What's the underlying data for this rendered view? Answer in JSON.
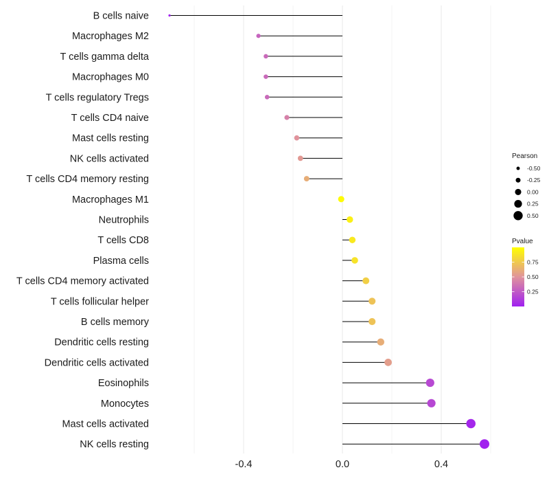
{
  "chart_data": {
    "type": "lollipop",
    "title": "",
    "xlabel": "",
    "ylabel": "",
    "xlim": [
      -0.7,
      0.62
    ],
    "x_ticks": [
      -0.4,
      0.0,
      0.4
    ],
    "x_tick_labels": [
      "-0.4",
      "0.0",
      "0.4"
    ],
    "grid": true,
    "categories": [
      "B cells naive",
      "Macrophages M2",
      "T cells gamma delta",
      "Macrophages M0",
      "T cells regulatory  Tregs ",
      "T cells CD4 naive",
      "Mast cells resting",
      "NK cells activated",
      "T cells CD4 memory resting",
      "Macrophages M1",
      "Neutrophils",
      "T cells CD8",
      "Plasma cells",
      "T cells CD4 memory activated",
      "T cells follicular helper",
      "B cells memory",
      "Dendritic cells resting",
      "Dendritic cells activated",
      "Eosinophils",
      "Monocytes",
      "Mast cells activated",
      "NK cells resting"
    ],
    "pearson": [
      -0.7,
      -0.34,
      -0.31,
      -0.31,
      -0.305,
      -0.225,
      -0.185,
      -0.17,
      -0.145,
      -0.005,
      0.03,
      0.04,
      0.05,
      0.095,
      0.12,
      0.12,
      0.155,
      0.185,
      0.355,
      0.36,
      0.52,
      0.575
    ],
    "pvalue": [
      0.01,
      0.3,
      0.32,
      0.32,
      0.32,
      0.42,
      0.5,
      0.53,
      0.62,
      0.98,
      0.93,
      0.9,
      0.87,
      0.78,
      0.72,
      0.72,
      0.62,
      0.55,
      0.18,
      0.17,
      0.03,
      0.01
    ],
    "size_legend": {
      "title": "Pearson",
      "breaks": [
        -0.5,
        -0.25,
        0.0,
        0.25,
        0.5
      ],
      "labels": [
        "-0.50",
        "-0.25",
        "0.00",
        "0.25",
        "0.50"
      ]
    },
    "color_legend": {
      "title": "Pvalue",
      "range": [
        0.0,
        1.0
      ],
      "breaks": [
        0.25,
        0.5,
        0.75
      ],
      "labels": [
        "0.25",
        "0.50",
        "0.75"
      ],
      "low_color": "#a020f0",
      "mid_color": "#e0939c",
      "high_color": "#ffff00"
    },
    "stem_color": "#000000",
    "grid_color": "#ebebeb"
  }
}
